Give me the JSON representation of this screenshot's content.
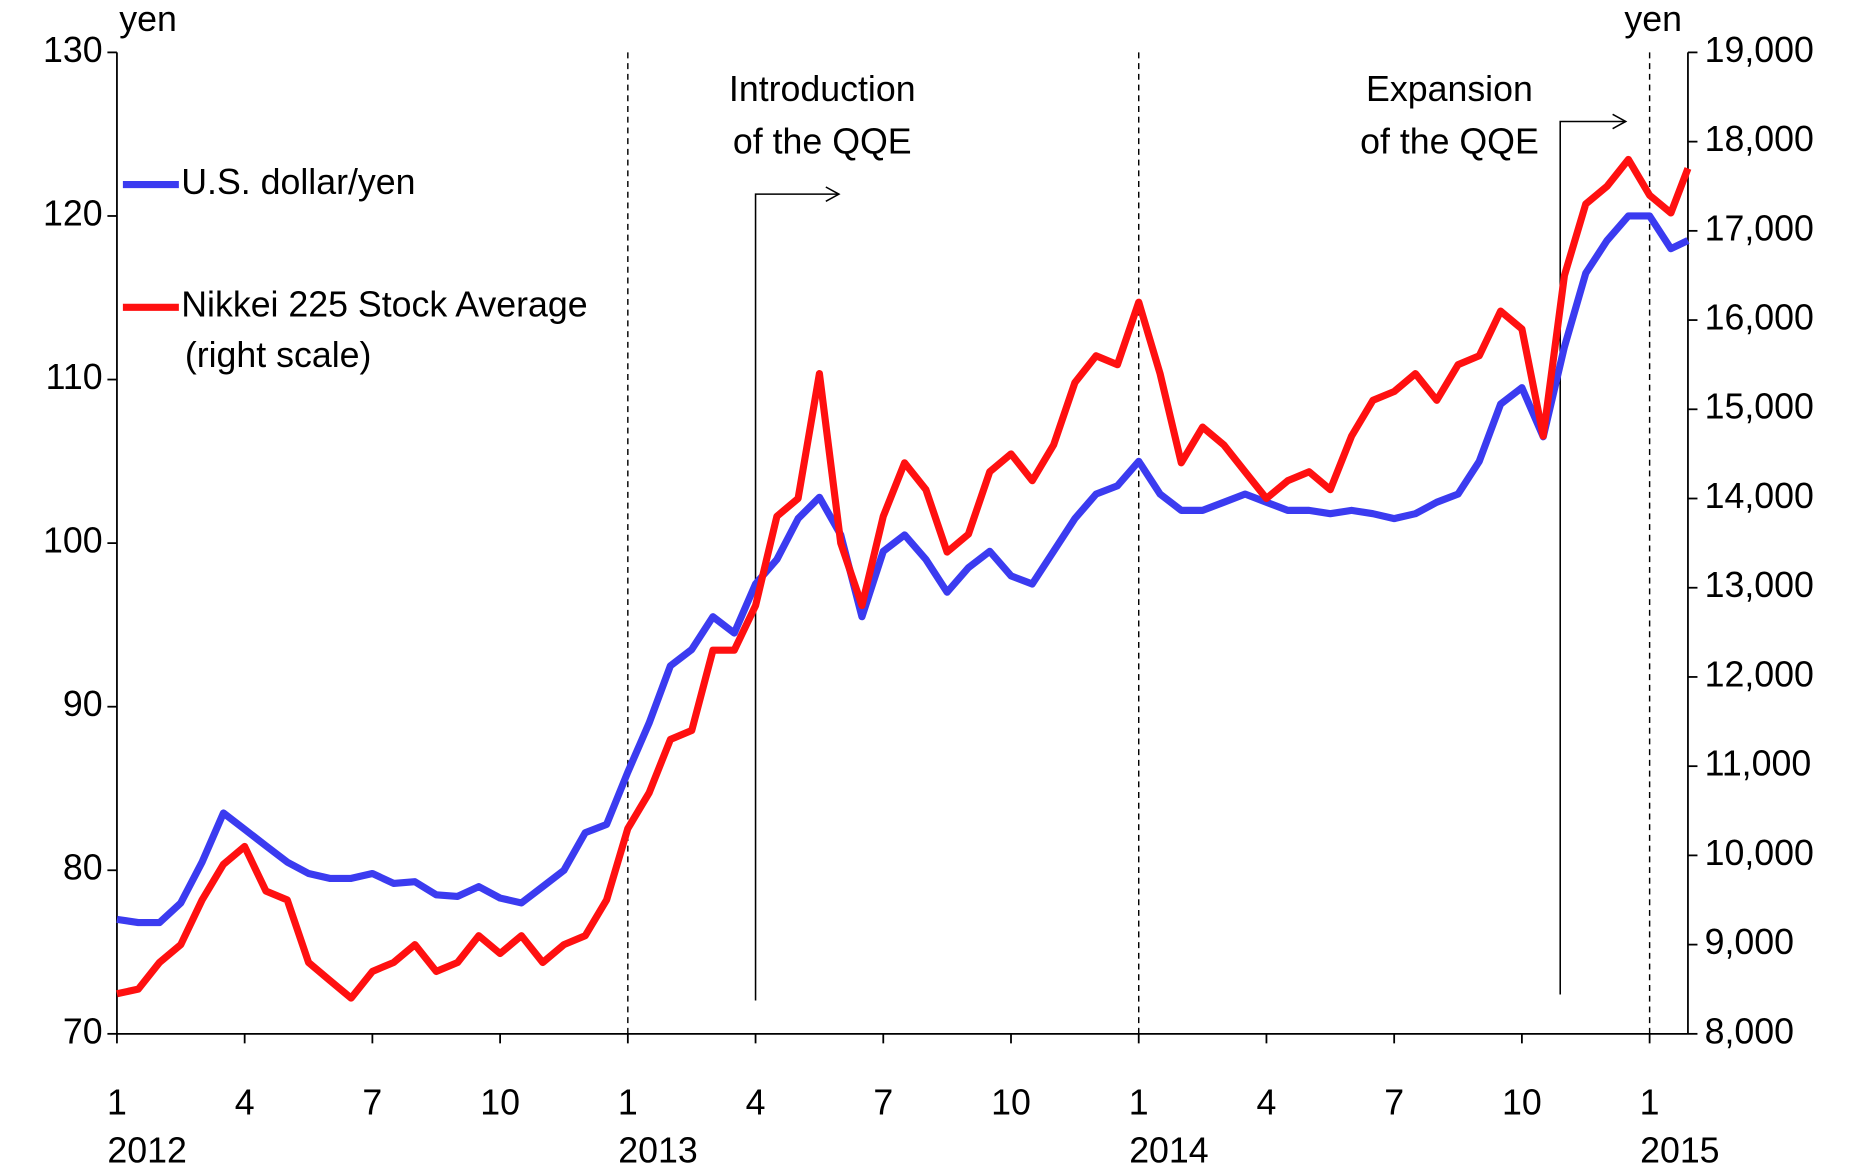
{
  "chart_data": {
    "type": "line",
    "y_label": "yen",
    "y2_label": "yen",
    "x": [
      0,
      0.5,
      1,
      1.5,
      2,
      2.5,
      3,
      3.5,
      4,
      4.5,
      5,
      5.5,
      6,
      6.5,
      7,
      7.5,
      8,
      8.5,
      9,
      9.5,
      10,
      10.5,
      11,
      11.5,
      12,
      12.5,
      13,
      13.5,
      14,
      14.5,
      15,
      15.5,
      16,
      16.5,
      17,
      17.5,
      18,
      18.5,
      19,
      19.5,
      20,
      20.5,
      21,
      21.5,
      22,
      22.5,
      23,
      23.5,
      24,
      24.5,
      25,
      25.5,
      26,
      26.5,
      27,
      27.5,
      28,
      28.5,
      29,
      29.5,
      30,
      30.5,
      31,
      31.5,
      32,
      32.5,
      33,
      33.5,
      34,
      34.5,
      35,
      35.5,
      36,
      36.5,
      36.9
    ],
    "series": [
      {
        "name": "U.S. dollar/yen",
        "color": "#3b3bf0",
        "values": [
          77.0,
          76.8,
          76.8,
          78.0,
          80.5,
          83.5,
          82.5,
          81.5,
          80.5,
          79.8,
          79.5,
          79.5,
          79.8,
          79.2,
          79.3,
          78.5,
          78.4,
          79.0,
          78.3,
          78.0,
          79.0,
          80.0,
          82.3,
          82.8,
          86.0,
          89.0,
          92.5,
          93.5,
          95.5,
          94.5,
          97.5,
          99.0,
          101.5,
          102.8,
          100.5,
          95.5,
          99.5,
          100.5,
          99.0,
          97.0,
          98.5,
          99.5,
          98.0,
          97.5,
          99.5,
          101.5,
          103.0,
          103.5,
          105.0,
          103.0,
          102.0,
          102.0,
          102.5,
          103.0,
          102.5,
          102.0,
          102.0,
          101.8,
          102.0,
          101.8,
          101.5,
          101.8,
          102.5,
          103.0,
          105.0,
          108.5,
          109.5,
          106.5,
          112.0,
          116.5,
          118.5,
          120.0,
          120.0,
          118.0,
          118.5
        ]
      },
      {
        "name": "Nikkei 225 Stock Average",
        "name_note": "(right scale)",
        "color": "#ff1010",
        "axis": "y2",
        "values": [
          8450,
          8500,
          8800,
          9000,
          9500,
          9900,
          10100,
          9600,
          9500,
          8800,
          8600,
          8400,
          8700,
          8800,
          9000,
          8700,
          8800,
          9100,
          8900,
          9100,
          8800,
          9000,
          9100,
          9500,
          10300,
          10700,
          11300,
          11400,
          12300,
          12300,
          12800,
          13800,
          14000,
          15400,
          13500,
          12800,
          13800,
          14400,
          14100,
          13400,
          13600,
          14300,
          14500,
          14200,
          14600,
          15300,
          15600,
          15500,
          16200,
          15400,
          14400,
          14800,
          14600,
          14300,
          14000,
          14200,
          14300,
          14100,
          14700,
          15100,
          15200,
          15400,
          15100,
          15500,
          15600,
          16100,
          15900,
          14700,
          16500,
          17300,
          17500,
          17800,
          17400,
          17200,
          17700
        ]
      }
    ],
    "xlim": [
      0,
      36.9
    ],
    "xticks": [
      {
        "value": 0,
        "label": "1"
      },
      {
        "value": 3,
        "label": "4"
      },
      {
        "value": 6,
        "label": "7"
      },
      {
        "value": 9,
        "label": "10"
      },
      {
        "value": 12,
        "label": "1"
      },
      {
        "value": 15,
        "label": "4"
      },
      {
        "value": 18,
        "label": "7"
      },
      {
        "value": 21,
        "label": "10"
      },
      {
        "value": 24,
        "label": "1"
      },
      {
        "value": 27,
        "label": "4"
      },
      {
        "value": 30,
        "label": "7"
      },
      {
        "value": 33,
        "label": "10"
      },
      {
        "value": 36,
        "label": "1"
      }
    ],
    "year_labels": [
      {
        "value": 0,
        "label": "2012"
      },
      {
        "value": 12,
        "label": "2013"
      },
      {
        "value": 24,
        "label": "2014"
      },
      {
        "value": 36,
        "label": "2015"
      }
    ],
    "ylim": [
      70,
      130
    ],
    "yticks": [
      70,
      80,
      90,
      100,
      110,
      120,
      130
    ],
    "y2lim": [
      8000,
      19000
    ],
    "y2ticks": [
      {
        "value": 8000,
        "label": "8,000"
      },
      {
        "value": 9000,
        "label": "9,000"
      },
      {
        "value": 10000,
        "label": "10,000"
      },
      {
        "value": 11000,
        "label": "11,000"
      },
      {
        "value": 12000,
        "label": "12,000"
      },
      {
        "value": 13000,
        "label": "13,000"
      },
      {
        "value": 14000,
        "label": "14,000"
      },
      {
        "value": 15000,
        "label": "15,000"
      },
      {
        "value": 16000,
        "label": "16,000"
      },
      {
        "value": 17000,
        "label": "17,000"
      },
      {
        "value": 18000,
        "label": "18,000"
      },
      {
        "value": 19000,
        "label": "19,000"
      }
    ],
    "annotations": [
      {
        "lines": [
          "Introduction",
          "of the QQE"
        ],
        "x": 15.0
      },
      {
        "lines": [
          "Expansion",
          "of the QQE"
        ],
        "x": 33.9
      }
    ],
    "legend": "top-left"
  }
}
